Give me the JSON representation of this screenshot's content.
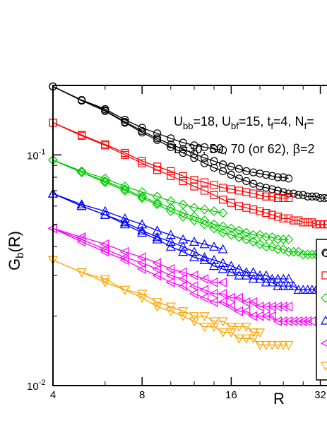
{
  "chart_data": {
    "type": "line",
    "title": "",
    "xlabel": "R",
    "ylabel_main": "G",
    "ylabel_sub": "b",
    "ylabel_rest": "(R)",
    "x_scale": "log",
    "y_scale": "log",
    "xlim": [
      4,
      36
    ],
    "ylim": [
      0.01,
      0.2
    ],
    "x_ticks": [
      4,
      8,
      16,
      32
    ],
    "x_tick_labels": [
      "4",
      "8",
      "16",
      "32"
    ],
    "y_ticks": [
      {
        "value": 0.1,
        "base": "10",
        "exp": "-1"
      },
      {
        "value": 0.01,
        "base": "10",
        "exp": "-2"
      }
    ],
    "annotation_line1": [
      {
        "t": "U",
        "s": "normal"
      },
      {
        "t": "bb",
        "s": "sub"
      },
      {
        "t": "=18, U",
        "s": "normal"
      },
      {
        "t": "bf",
        "s": "sub"
      },
      {
        "t": "=15, t",
        "s": "normal"
      },
      {
        "t": "f",
        "s": "sub"
      },
      {
        "t": "=4, N",
        "s": "normal"
      },
      {
        "t": "f",
        "s": "sub"
      },
      {
        "t": "=",
        "s": "normal"
      }
    ],
    "annotation_line2": "L=30, 50, 70 (or 62), β=2",
    "legend_markers": [
      "circle",
      "square",
      "diamond",
      "triangle-up",
      "triangle-left",
      "triangle-down"
    ],
    "legend_text_partial": [
      "G",
      "",
      "",
      "",
      "",
      ""
    ],
    "legend_colors": [
      "#000000",
      "#ff0000",
      "#00cc00",
      "#0000ff",
      "#ff00ff",
      "#ffa500"
    ],
    "groups": [
      {
        "marker": "circle",
        "color": "#000000",
        "series": [
          {
            "x": [
              4,
              5,
              6,
              7,
              8,
              9,
              10,
              11,
              12,
              13,
              14,
              15
            ],
            "y": [
              0.198,
              0.173,
              0.158,
              0.142,
              0.131,
              0.124,
              0.118,
              0.113,
              0.11,
              0.108,
              0.106,
              0.105
            ]
          },
          {
            "x": [
              4,
              5,
              6,
              7,
              8,
              9,
              10,
              11,
              12,
              13,
              14,
              15,
              16,
              17,
              18,
              19,
              20,
              21,
              22,
              23,
              24,
              25
            ],
            "y": [
              0.198,
              0.172,
              0.156,
              0.139,
              0.127,
              0.118,
              0.111,
              0.106,
              0.101,
              0.097,
              0.094,
              0.091,
              0.089,
              0.087,
              0.085,
              0.084,
              0.083,
              0.082,
              0.081,
              0.08,
              0.08,
              0.079
            ]
          },
          {
            "x": [
              4,
              5,
              6,
              7,
              8,
              9,
              10,
              11,
              12,
              13,
              14,
              15,
              16,
              17,
              18,
              19,
              20,
              21,
              22,
              23,
              24,
              25,
              26,
              27,
              28,
              29,
              30,
              31,
              32,
              33,
              34,
              35
            ],
            "y": [
              0.198,
              0.172,
              0.155,
              0.138,
              0.125,
              0.116,
              0.108,
              0.102,
              0.097,
              0.092,
              0.088,
              0.085,
              0.082,
              0.079,
              0.077,
              0.075,
              0.073,
              0.072,
              0.071,
              0.07,
              0.069,
              0.068,
              0.068,
              0.067,
              0.067,
              0.066,
              0.066,
              0.066,
              0.065,
              0.065,
              0.065,
              0.065
            ]
          }
        ]
      },
      {
        "marker": "square",
        "color": "#ff0000",
        "series": [
          {
            "x": [
              4,
              5,
              6,
              7,
              8,
              9,
              10,
              11,
              12,
              13,
              14,
              15,
              16,
              17,
              18,
              19,
              20,
              21,
              22,
              23,
              24,
              25
            ],
            "y": [
              0.138,
              0.122,
              0.111,
              0.102,
              0.094,
              0.089,
              0.085,
              0.081,
              0.078,
              0.076,
              0.074,
              0.072,
              0.071,
              0.07,
              0.069,
              0.068,
              0.067,
              0.066,
              0.066,
              0.065,
              0.065,
              0.065
            ]
          },
          {
            "x": [
              4,
              5,
              6,
              7,
              8,
              9,
              10,
              11,
              12,
              13,
              14,
              15,
              16,
              17,
              18,
              19,
              20,
              21,
              22,
              23,
              24,
              25,
              26,
              27,
              28,
              29,
              30,
              31,
              32,
              33,
              34,
              35
            ],
            "y": [
              0.138,
              0.121,
              0.11,
              0.1,
              0.092,
              0.086,
              0.081,
              0.077,
              0.073,
              0.07,
              0.067,
              0.064,
              0.062,
              0.06,
              0.059,
              0.058,
              0.057,
              0.056,
              0.055,
              0.054,
              0.053,
              0.053,
              0.052,
              0.052,
              0.051,
              0.051,
              0.051,
              0.05,
              0.05,
              0.05,
              0.05,
              0.05
            ]
          }
        ]
      },
      {
        "marker": "diamond",
        "color": "#00cc00",
        "series": [
          {
            "x": [
              4,
              5,
              6,
              7,
              8,
              9,
              10,
              11,
              12,
              13,
              14,
              15
            ],
            "y": [
              0.095,
              0.085,
              0.079,
              0.073,
              0.069,
              0.066,
              0.063,
              0.061,
              0.059,
              0.058,
              0.057,
              0.056
            ]
          },
          {
            "x": [
              4,
              5,
              6,
              7,
              8,
              9,
              10,
              11,
              12,
              13,
              14,
              15,
              16,
              17,
              18,
              19,
              20,
              21,
              22,
              23,
              24,
              25
            ],
            "y": [
              0.095,
              0.084,
              0.077,
              0.071,
              0.066,
              0.062,
              0.059,
              0.056,
              0.054,
              0.052,
              0.05,
              0.049,
              0.048,
              0.047,
              0.046,
              0.045,
              0.045,
              0.044,
              0.044,
              0.043,
              0.043,
              0.043
            ]
          },
          {
            "x": [
              4,
              5,
              6,
              7,
              8,
              9,
              10,
              11,
              12,
              13,
              14,
              15,
              16,
              17,
              18,
              19,
              20,
              21,
              22,
              23,
              24,
              25,
              26,
              27,
              28,
              29,
              30,
              31,
              32,
              33,
              34,
              35
            ],
            "y": [
              0.095,
              0.084,
              0.076,
              0.07,
              0.065,
              0.061,
              0.057,
              0.054,
              0.052,
              0.05,
              0.048,
              0.046,
              0.045,
              0.044,
              0.043,
              0.042,
              0.041,
              0.04,
              0.04,
              0.039,
              0.039,
              0.038,
              0.038,
              0.038,
              0.037,
              0.037,
              0.037,
              0.037,
              0.037,
              0.037,
              0.037,
              0.037
            ]
          }
        ]
      },
      {
        "marker": "triangle-up",
        "color": "#0000ff",
        "series": [
          {
            "x": [
              4,
              5,
              6,
              7,
              8,
              9,
              10,
              11,
              12,
              13,
              14,
              15
            ],
            "y": [
              0.068,
              0.061,
              0.057,
              0.053,
              0.05,
              0.047,
              0.045,
              0.043,
              0.042,
              0.041,
              0.04,
              0.039
            ]
          },
          {
            "x": [
              4,
              5,
              6,
              7,
              8,
              9,
              10,
              11,
              12,
              13,
              14,
              15,
              16,
              17,
              18,
              19,
              20,
              21,
              22,
              23,
              24,
              25
            ],
            "y": [
              0.068,
              0.06,
              0.055,
              0.051,
              0.047,
              0.044,
              0.042,
              0.04,
              0.038,
              0.036,
              0.035,
              0.034,
              0.033,
              0.032,
              0.031,
              0.031,
              0.03,
              0.03,
              0.029,
              0.029,
              0.029,
              0.029
            ]
          },
          {
            "x": [
              4,
              5,
              6,
              7,
              8,
              9,
              10,
              11,
              12,
              13,
              14,
              15,
              16,
              17,
              18,
              19,
              20,
              21,
              22,
              23,
              24,
              25,
              26,
              27,
              28,
              29,
              30,
              31,
              32,
              33,
              34,
              35
            ],
            "y": [
              0.068,
              0.06,
              0.055,
              0.05,
              0.046,
              0.043,
              0.04,
              0.038,
              0.036,
              0.035,
              0.033,
              0.032,
              0.031,
              0.03,
              0.03,
              0.029,
              0.029,
              0.028,
              0.028,
              0.027,
              0.027,
              0.027,
              0.027,
              0.026,
              0.026,
              0.026,
              0.026,
              0.026,
              0.026,
              0.026,
              0.026,
              0.026
            ]
          }
        ]
      },
      {
        "marker": "triangle-left",
        "color": "#ff00ff",
        "series": [
          {
            "x": [
              4,
              5,
              6,
              7,
              8,
              9,
              10,
              11,
              12,
              13,
              14,
              15
            ],
            "y": [
              0.048,
              0.044,
              0.041,
              0.038,
              0.036,
              0.034,
              0.032,
              0.031,
              0.03,
              0.029,
              0.028,
              0.028
            ]
          },
          {
            "x": [
              4,
              5,
              6,
              7,
              8,
              9,
              10,
              11,
              12,
              13,
              14,
              15,
              16,
              17,
              18,
              19,
              20,
              21,
              22,
              23,
              24,
              25
            ],
            "y": [
              0.048,
              0.043,
              0.039,
              0.036,
              0.034,
              0.032,
              0.03,
              0.029,
              0.027,
              0.026,
              0.025,
              0.025,
              0.024,
              0.024,
              0.023,
              0.023,
              0.022,
              0.022,
              0.022,
              0.022,
              0.022,
              0.022
            ]
          },
          {
            "x": [
              4,
              5,
              6,
              7,
              8,
              9,
              10,
              11,
              12,
              13,
              14,
              15,
              16,
              17,
              18,
              19,
              20,
              21,
              22,
              23,
              24,
              25,
              26,
              27,
              28,
              29,
              30
            ],
            "y": [
              0.048,
              0.042,
              0.038,
              0.035,
              0.032,
              0.03,
              0.028,
              0.027,
              0.025,
              0.024,
              0.023,
              0.023,
              0.022,
              0.021,
              0.021,
              0.02,
              0.02,
              0.02,
              0.02,
              0.019,
              0.019,
              0.019,
              0.019,
              0.019,
              0.019,
              0.019,
              0.019
            ]
          }
        ]
      },
      {
        "marker": "triangle-down",
        "color": "#ffa500",
        "series": [
          {
            "x": [
              4,
              5,
              6,
              7,
              8,
              9,
              10,
              11,
              12,
              13,
              14,
              15,
              16,
              17,
              18,
              19,
              20
            ],
            "y": [
              0.035,
              0.031,
              0.029,
              0.026,
              0.025,
              0.023,
              0.022,
              0.021,
              0.02,
              0.02,
              0.019,
              0.019,
              0.018,
              0.018,
              0.018,
              0.017,
              0.017
            ]
          },
          {
            "x": [
              4,
              5,
              6,
              7,
              8,
              9,
              10,
              11,
              12,
              13,
              14,
              15,
              16,
              17,
              18,
              19,
              20,
              21,
              22,
              23,
              24,
              25
            ],
            "y": [
              0.035,
              0.031,
              0.028,
              0.026,
              0.024,
              0.022,
              0.021,
              0.02,
              0.019,
              0.018,
              0.018,
              0.017,
              0.017,
              0.016,
              0.016,
              0.016,
              0.015,
              0.015,
              0.015,
              0.015,
              0.015,
              0.015
            ]
          }
        ]
      }
    ]
  }
}
